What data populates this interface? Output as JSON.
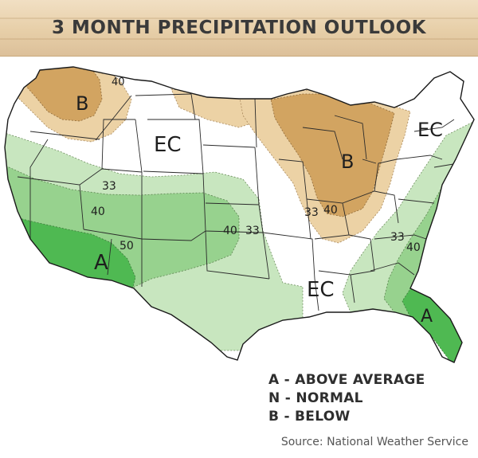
{
  "header": {
    "title": "3 MONTH PRECIPITATION OUTLOOK"
  },
  "map": {
    "colors": {
      "above_light": "#c8e6bf",
      "above_mid": "#97d28e",
      "above_dark": "#4fb952",
      "below_light": "#ecd2a5",
      "below_dark": "#d2a461",
      "equal_chances": "#ffffff"
    },
    "labels": {
      "b_northwest": "B",
      "ec_plains": "EC",
      "b_greatlakes": "B",
      "ec_northeast": "EC",
      "a_southwest": "A",
      "ec_south": "EC",
      "a_florida": "A"
    },
    "contours": {
      "c40_nw": "40",
      "c33_west": "33",
      "c40_west": "40",
      "c50_sw": "50",
      "c40_plains": "40",
      "c33_plains": "33",
      "c33_gl": "33",
      "c40_gl": "40",
      "c33_se": "33",
      "c40_se": "40"
    }
  },
  "legend": {
    "above": "A - ABOVE AVERAGE",
    "normal": "N - NORMAL",
    "below": "B - BELOW"
  },
  "footer": {
    "source": "Source: National Weather Service"
  }
}
